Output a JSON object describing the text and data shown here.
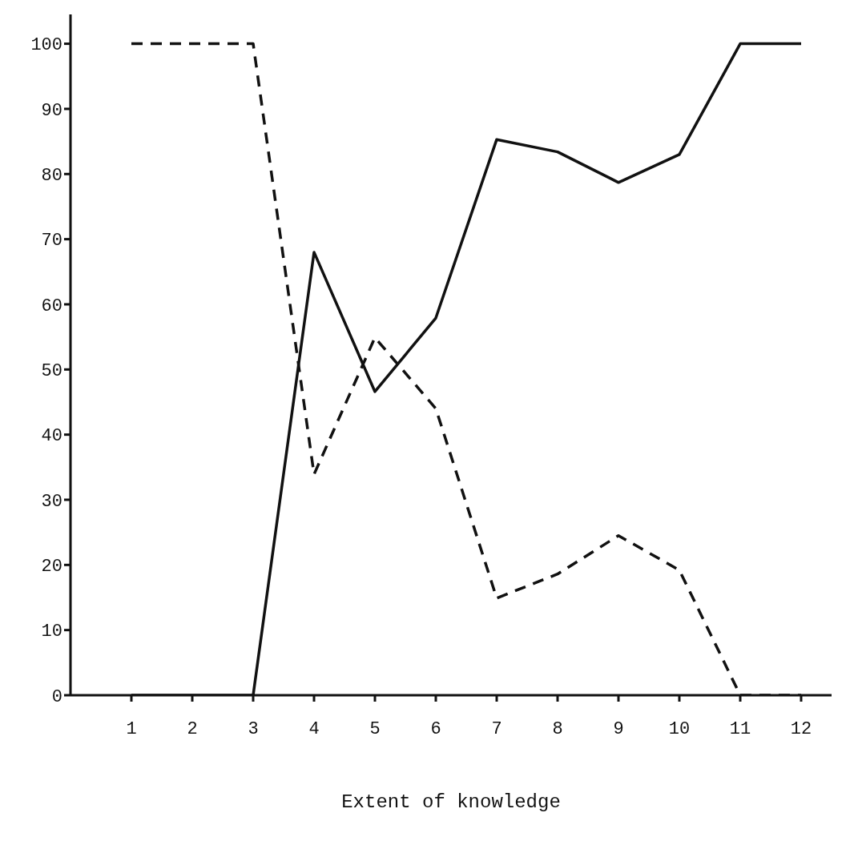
{
  "chart_data": {
    "type": "line",
    "xlabel": "Extent of knowledge",
    "x": [
      1,
      2,
      3,
      4,
      5,
      6,
      7,
      8,
      9,
      10,
      11,
      12
    ],
    "series": [
      {
        "color": "#111111",
        "line_style": "solid",
        "values": [
          0,
          0,
          0,
          68,
          46.6,
          57.9,
          85.3,
          83.4,
          78.7,
          83,
          100,
          100
        ]
      },
      {
        "color": "#111111",
        "line_style": "dashed",
        "values": [
          100,
          100,
          100,
          33.9,
          54.9,
          44,
          14.9,
          18.6,
          24.5,
          19.2,
          0,
          0
        ]
      }
    ],
    "xlim": [
      0,
      12.5
    ],
    "xticks": [
      1,
      2,
      3,
      4,
      5,
      6,
      7,
      8,
      9,
      10,
      11,
      12
    ],
    "ylim": [
      0,
      104.5
    ],
    "yticks": [
      0,
      10,
      20,
      30,
      40,
      50,
      60,
      70,
      80,
      90,
      100
    ],
    "grid": false,
    "legend": false,
    "marker": "none"
  }
}
